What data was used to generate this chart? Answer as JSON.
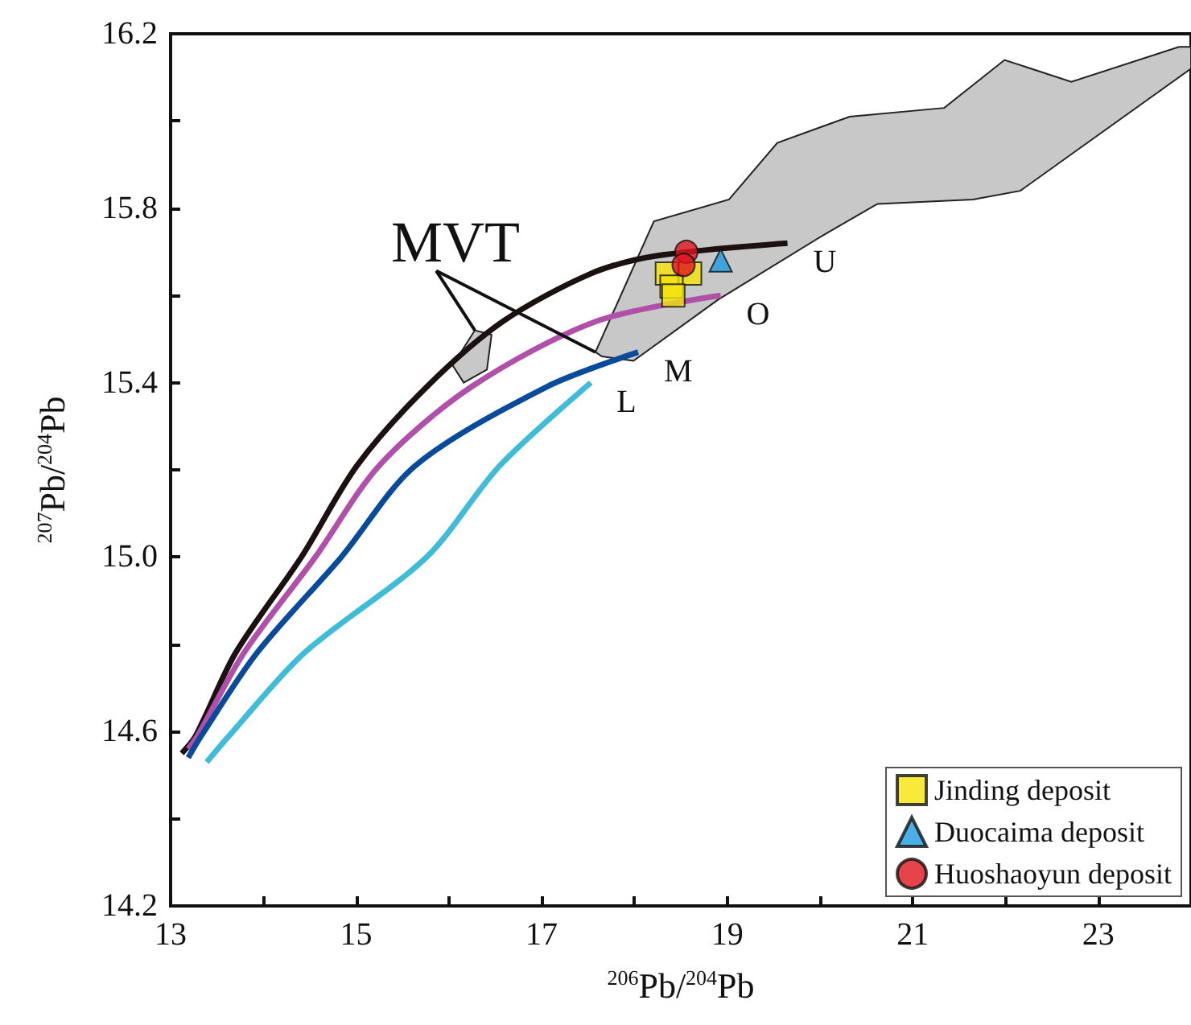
{
  "chart_data": {
    "type": "line",
    "xlabel": "$^{206}$Pb/$^{204}$Pb",
    "ylabel": "$^{207}$Pb/$^{204}$Pb",
    "xlim": [
      13,
      24
    ],
    "ylim": [
      14.2,
      16.2
    ],
    "xticks": [
      13,
      {
        "value": 14,
        "label": null
      },
      15,
      {
        "value": 16,
        "label": null
      },
      17,
      {
        "value": 18,
        "label": null
      },
      19,
      {
        "value": 20,
        "label": null
      },
      21,
      {
        "value": 22,
        "label": null
      },
      23
    ],
    "yticks": [
      14.2,
      {
        "value": 14.4,
        "label": null
      },
      14.6,
      {
        "value": 14.8,
        "label": null
      },
      {
        "value": 15.0,
        "label": "15.0"
      },
      {
        "value": 15.2,
        "label": null
      },
      15.4,
      {
        "value": 15.6,
        "label": null
      },
      15.8,
      {
        "value": 16.0,
        "label": null
      },
      16.2
    ],
    "grid": false,
    "legend": "bottom right",
    "annotations": [
      {
        "text": "MVT",
        "x": 16.28,
        "y": 15.52
      }
    ],
    "series": [
      {
        "type": "area",
        "color": "#c8c8c8",
        "x": [
          17.58,
          18.21,
          19.02,
          19.54,
          20.32,
          21.34,
          21.99,
          22.71,
          23.87,
          24,
          24,
          22.16,
          21.65,
          20.62,
          20.05,
          18.9,
          17.99,
          17.65
        ],
        "values": [
          15.47,
          15.77,
          15.82,
          15.95,
          16.01,
          16.03,
          16.14,
          16.09,
          16.17,
          16.17,
          16.12,
          15.84,
          15.82,
          15.81,
          15.74,
          15.59,
          15.45,
          15.46
        ]
      },
      {
        "type": "area",
        "color": "#c8c8c8",
        "x": [
          16.04,
          16.28,
          16.46,
          16.41,
          16.16
        ],
        "values": [
          15.44,
          15.52,
          15.51,
          15.43,
          15.4
        ]
      },
      {
        "name": "U",
        "color": "#1a1110",
        "x": [
          13.12,
          13.27,
          13.7,
          14.41,
          15.01,
          15.76,
          16.58,
          17.53,
          18.21,
          19.65
        ],
        "values": [
          14.55,
          14.59,
          14.78,
          15.0,
          15.21,
          15.39,
          15.54,
          15.65,
          15.69,
          15.72
        ]
      },
      {
        "name": "O",
        "color": "#b050a8",
        "x": [
          13.19,
          13.29,
          13.79,
          14.56,
          15.25,
          16.24,
          17.58,
          18.93
        ],
        "values": [
          14.56,
          14.59,
          14.78,
          15.0,
          15.21,
          15.39,
          15.54,
          15.6
        ]
      },
      {
        "name": "M",
        "color": "#0a4a9a",
        "x": [
          13.19,
          13.33,
          13.93,
          14.84,
          15.64,
          17.05,
          18.04
        ],
        "values": [
          14.54,
          14.59,
          14.78,
          15.0,
          15.21,
          15.39,
          15.47
        ]
      },
      {
        "name": "L",
        "color": "#40bcd8",
        "x": [
          13.39,
          13.63,
          14.44,
          15.76,
          16.55,
          17.53
        ],
        "values": [
          14.53,
          14.59,
          14.78,
          15.0,
          15.21,
          15.4
        ]
      },
      {
        "type": "scatter",
        "name": "Jinding deposit",
        "color": "#f5e50a",
        "marker": "square",
        "x": [
          18.35,
          18.6,
          18.4,
          18.42
        ],
        "values": [
          15.65,
          15.65,
          15.62,
          15.6
        ]
      },
      {
        "type": "scatter",
        "name": "Duocaima deposit",
        "color": "#1e9be0",
        "marker": "triangle",
        "x": [
          18.93
        ],
        "values": [
          15.68
        ]
      },
      {
        "type": "scatter",
        "name": "Huoshaoyun deposit",
        "color": "#e0141e",
        "marker": "circle",
        "x": [
          18.56,
          18.53
        ],
        "values": [
          15.7,
          15.67
        ]
      }
    ]
  }
}
